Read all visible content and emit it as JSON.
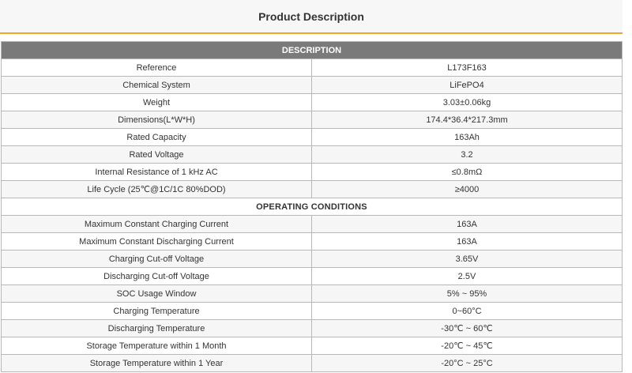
{
  "header": {
    "title": "Product Description"
  },
  "table": {
    "description_heading": "DESCRIPTION",
    "description_rows": [
      {
        "label": "Reference",
        "value": "L173F163"
      },
      {
        "label": "Chemical System",
        "value": "LiFePO4"
      },
      {
        "label": "Weight",
        "value": "3.03±0.06kg"
      },
      {
        "label": "Dimensions(L*W*H)",
        "value": "174.4*36.4*217.3mm"
      },
      {
        "label": "Rated Capacity",
        "value": "163Ah"
      },
      {
        "label": "Rated Voltage",
        "value": "3.2"
      },
      {
        "label": "Internal Resistance of 1 kHz AC",
        "value": "≤0.8mΩ"
      },
      {
        "label": "Life Cycle  (25℃@1C/1C 80%DOD)",
        "value": "≥4000"
      }
    ],
    "operating_heading": "OPERATING CONDITIONS",
    "operating_rows": [
      {
        "label": "Maximum Constant Charging Current",
        "value": "163A"
      },
      {
        "label": "Maximum Constant Discharging Current",
        "value": "163A"
      },
      {
        "label": "Charging Cut-off Voltage",
        "value": "3.65V"
      },
      {
        "label": "Discharging Cut-off Voltage",
        "value": "2.5V"
      },
      {
        "label": "SOC Usage Window",
        "value": "5% ~ 95%"
      },
      {
        "label": "Charging Temperature",
        "value": "0~60°C"
      },
      {
        "label": "Discharging Temperature",
        "value": "-30℃ ~ 60℃"
      },
      {
        "label": "Storage Temperature within 1 Month",
        "value": "-20℃ ~ 45℃"
      },
      {
        "label": "Storage Temperature within 1 Year",
        "value": "-20°C ~ 25°C"
      }
    ]
  }
}
